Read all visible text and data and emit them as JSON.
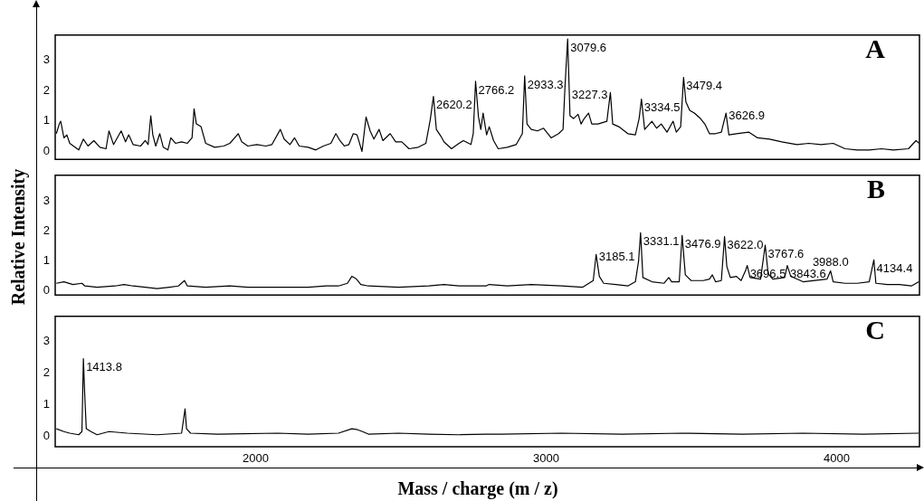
{
  "chart_data": [
    {
      "type": "line",
      "title": "A",
      "color": "#000000",
      "xlim": [
        1310,
        4285
      ],
      "ylim": [
        -0.27,
        3.84
      ],
      "yticks": [
        0,
        1,
        2,
        3
      ],
      "tick_labels": "y",
      "x": [
        1314,
        1324,
        1329,
        1340,
        1350,
        1360,
        1391,
        1407,
        1423,
        1443,
        1464,
        1485,
        1495,
        1511,
        1537,
        1552,
        1563,
        1578,
        1604,
        1620,
        1630,
        1639,
        1646,
        1656,
        1670,
        1682,
        1698,
        1708,
        1724,
        1745,
        1765,
        1781,
        1788,
        1796,
        1812,
        1828,
        1859,
        1890,
        1911,
        1940,
        1952,
        1973,
        2004,
        2035,
        2056,
        2085,
        2098,
        2118,
        2134,
        2150,
        2181,
        2207,
        2233,
        2259,
        2276,
        2290,
        2305,
        2321,
        2336,
        2349,
        2366,
        2380,
        2394,
        2407,
        2425,
        2438,
        2463,
        2482,
        2503,
        2528,
        2560,
        2586,
        2601,
        2612,
        2622,
        2638,
        2648,
        2674,
        2700,
        2715,
        2741,
        2749,
        2757,
        2767,
        2775,
        2783,
        2795,
        2804,
        2819,
        2835,
        2866,
        2897,
        2918,
        2926,
        2934,
        2949,
        2970,
        2991,
        3017,
        3043,
        3058,
        3065,
        3074,
        3082,
        3094,
        3110,
        3120,
        3131,
        3146,
        3157,
        3178,
        3209,
        3221,
        3229,
        3250,
        3281,
        3307,
        3320,
        3328,
        3339,
        3364,
        3380,
        3396,
        3416,
        3437,
        3448,
        3463,
        3473,
        3481,
        3494,
        3510,
        3531,
        3546,
        3562,
        3583,
        3603,
        3619,
        3629,
        3655,
        3697,
        3728,
        3769,
        3811,
        3863,
        3904,
        3946,
        3988,
        4029,
        4071,
        4112,
        4154,
        4195,
        4247,
        4273,
        4284
      ],
      "values": [
        0.58,
        0.9,
        0.99,
        0.44,
        0.54,
        0.26,
        0.04,
        0.4,
        0.17,
        0.35,
        0.13,
        0.08,
        0.67,
        0.22,
        0.67,
        0.31,
        0.54,
        0.22,
        0.17,
        0.35,
        0.22,
        1.17,
        0.54,
        0.17,
        0.58,
        0.13,
        0.04,
        0.44,
        0.26,
        0.31,
        0.26,
        0.44,
        1.4,
        0.9,
        0.81,
        0.26,
        0.13,
        0.17,
        0.26,
        0.58,
        0.31,
        0.17,
        0.22,
        0.17,
        0.22,
        0.72,
        0.4,
        0.22,
        0.44,
        0.17,
        0.13,
        0.04,
        0.17,
        0.26,
        0.58,
        0.35,
        0.17,
        0.22,
        0.58,
        0.54,
        -0.01,
        1.13,
        0.67,
        0.4,
        0.72,
        0.35,
        0.58,
        0.31,
        0.31,
        0.08,
        0.13,
        0.26,
        1.04,
        1.81,
        0.72,
        0.49,
        0.31,
        0.08,
        0.26,
        0.35,
        0.22,
        0.58,
        2.31,
        1.13,
        0.72,
        1.26,
        0.54,
        0.81,
        0.35,
        0.08,
        0.13,
        0.22,
        0.58,
        2.49,
        0.9,
        0.72,
        0.67,
        0.76,
        0.44,
        0.58,
        0.72,
        2.17,
        3.71,
        1.17,
        1.08,
        1.22,
        0.9,
        1.08,
        1.26,
        0.9,
        0.9,
        0.99,
        1.94,
        0.9,
        0.81,
        0.58,
        0.54,
        1.08,
        1.72,
        0.72,
        0.99,
        0.76,
        0.9,
        0.63,
        0.99,
        0.63,
        0.81,
        2.44,
        1.63,
        1.35,
        1.26,
        1.08,
        0.9,
        0.58,
        0.58,
        0.63,
        1.26,
        0.54,
        0.58,
        0.63,
        0.44,
        0.4,
        0.31,
        0.22,
        0.26,
        0.22,
        0.26,
        0.08,
        0.04,
        0.04,
        0.08,
        0.04,
        0.08,
        0.35,
        0.26
      ],
      "annotations": [
        {
          "text": "2620.2",
          "x": 2612,
          "y": 1.81
        },
        {
          "text": "2766.2",
          "x": 2757,
          "y": 2.31
        },
        {
          "text": "2933.3",
          "x": 2926,
          "y": 2.49
        },
        {
          "text": "3079.6",
          "x": 3074,
          "y": 3.71
        },
        {
          "text": "3227.3",
          "x": 3221,
          "y": 1.94
        },
        {
          "text": "3334.5",
          "x": 3328,
          "y": 1.72
        },
        {
          "text": "3479.4",
          "x": 3473,
          "y": 2.44
        },
        {
          "text": "3626.9",
          "x": 3619,
          "y": 1.26
        }
      ]
    },
    {
      "type": "line",
      "title": "B",
      "ylabel": "Relative Intensity",
      "color": "#000000",
      "xlim": [
        1310,
        4285
      ],
      "ylim": [
        -0.13,
        3.85
      ],
      "yticks": [
        0,
        1,
        2,
        3
      ],
      "tick_labels": "y",
      "x": [
        1314,
        1340,
        1371,
        1402,
        1412,
        1454,
        1516,
        1547,
        1578,
        1620,
        1661,
        1703,
        1734,
        1755,
        1765,
        1828,
        1911,
        1973,
        2077,
        2181,
        2243,
        2285,
        2316,
        2331,
        2347,
        2362,
        2388,
        2492,
        2596,
        2648,
        2700,
        2793,
        2804,
        2866,
        2949,
        3053,
        3126,
        3162,
        3172,
        3183,
        3198,
        3240,
        3281,
        3307,
        3318,
        3325,
        3333,
        3364,
        3406,
        3422,
        3432,
        3458,
        3468,
        3479,
        3499,
        3541,
        3562,
        3572,
        3583,
        3603,
        3614,
        3622,
        3634,
        3655,
        3671,
        3686,
        3692,
        3702,
        3738,
        3754,
        3764,
        3780,
        3821,
        3830,
        3842,
        3884,
        3967,
        3979,
        3988,
        4029,
        4071,
        4112,
        4128,
        4135,
        4174,
        4216,
        4257,
        4283
      ],
      "values": [
        0.26,
        0.31,
        0.22,
        0.26,
        0.17,
        0.13,
        0.17,
        0.22,
        0.17,
        0.13,
        0.08,
        0.13,
        0.17,
        0.35,
        0.17,
        0.13,
        0.17,
        0.13,
        0.13,
        0.13,
        0.17,
        0.17,
        0.26,
        0.49,
        0.4,
        0.22,
        0.17,
        0.13,
        0.17,
        0.22,
        0.17,
        0.17,
        0.22,
        0.17,
        0.22,
        0.17,
        0.13,
        0.35,
        1.22,
        0.49,
        0.26,
        0.22,
        0.17,
        0.31,
        0.99,
        1.94,
        0.45,
        0.31,
        0.26,
        0.45,
        0.31,
        0.31,
        1.85,
        0.54,
        0.35,
        0.35,
        0.4,
        0.54,
        0.31,
        0.35,
        1.81,
        0.81,
        0.45,
        0.49,
        0.35,
        0.67,
        0.85,
        0.45,
        0.4,
        1.53,
        0.58,
        0.4,
        0.45,
        0.85,
        0.49,
        0.31,
        0.4,
        0.67,
        0.31,
        0.26,
        0.26,
        0.31,
        1.04,
        0.26,
        0.22,
        0.22,
        0.17,
        0.31
      ],
      "annotations": [
        {
          "text": "3185.1",
          "x": 3172,
          "y": 1.22
        },
        {
          "text": "3331.1",
          "x": 3325,
          "y": 1.94
        },
        {
          "text": "3476.9",
          "x": 3468,
          "y": 1.85
        },
        {
          "text": "3622.0",
          "x": 3614,
          "y": 1.81
        },
        {
          "text": "3696.5",
          "x": 3692,
          "y": 0.85
        },
        {
          "text": "3767.6",
          "x": 3754,
          "y": 1.53
        },
        {
          "text": "3843.6",
          "x": 3830,
          "y": 0.85
        },
        {
          "text": "3988.0",
          "x": 3979,
          "y": 0.67
        },
        {
          "text": "4134.4",
          "x": 4128,
          "y": 1.04
        }
      ]
    },
    {
      "type": "line",
      "title": "C",
      "xlabel": "Mass / charge (m / z)",
      "color": "#000000",
      "xlim": [
        1310,
        4285
      ],
      "xticks": [
        2000,
        3000,
        4000
      ],
      "ylim": [
        -0.33,
        3.8
      ],
      "yticks": [
        0,
        1,
        2,
        3
      ],
      "x": [
        1314,
        1340,
        1360,
        1391,
        1402,
        1407,
        1412,
        1417,
        1433,
        1454,
        1495,
        1558,
        1661,
        1745,
        1752,
        1757,
        1762,
        1776,
        1869,
        2077,
        2181,
        2285,
        2331,
        2347,
        2368,
        2388,
        2492,
        2596,
        2700,
        2793,
        2845,
        3053,
        3261,
        3468,
        3676,
        3884,
        4091,
        4283
      ],
      "values": [
        0.24,
        0.15,
        0.1,
        0.05,
        0.15,
        2.46,
        1.24,
        0.24,
        0.15,
        0.05,
        0.15,
        0.1,
        0.05,
        0.1,
        0.55,
        0.87,
        0.24,
        0.1,
        0.07,
        0.1,
        0.07,
        0.1,
        0.24,
        0.22,
        0.15,
        0.07,
        0.1,
        0.07,
        0.05,
        0.07,
        0.07,
        0.1,
        0.07,
        0.1,
        0.07,
        0.1,
        0.07,
        0.1
      ],
      "annotations": [
        {
          "text": "1413.8",
          "x": 1407,
          "y": 2.46
        }
      ]
    }
  ]
}
